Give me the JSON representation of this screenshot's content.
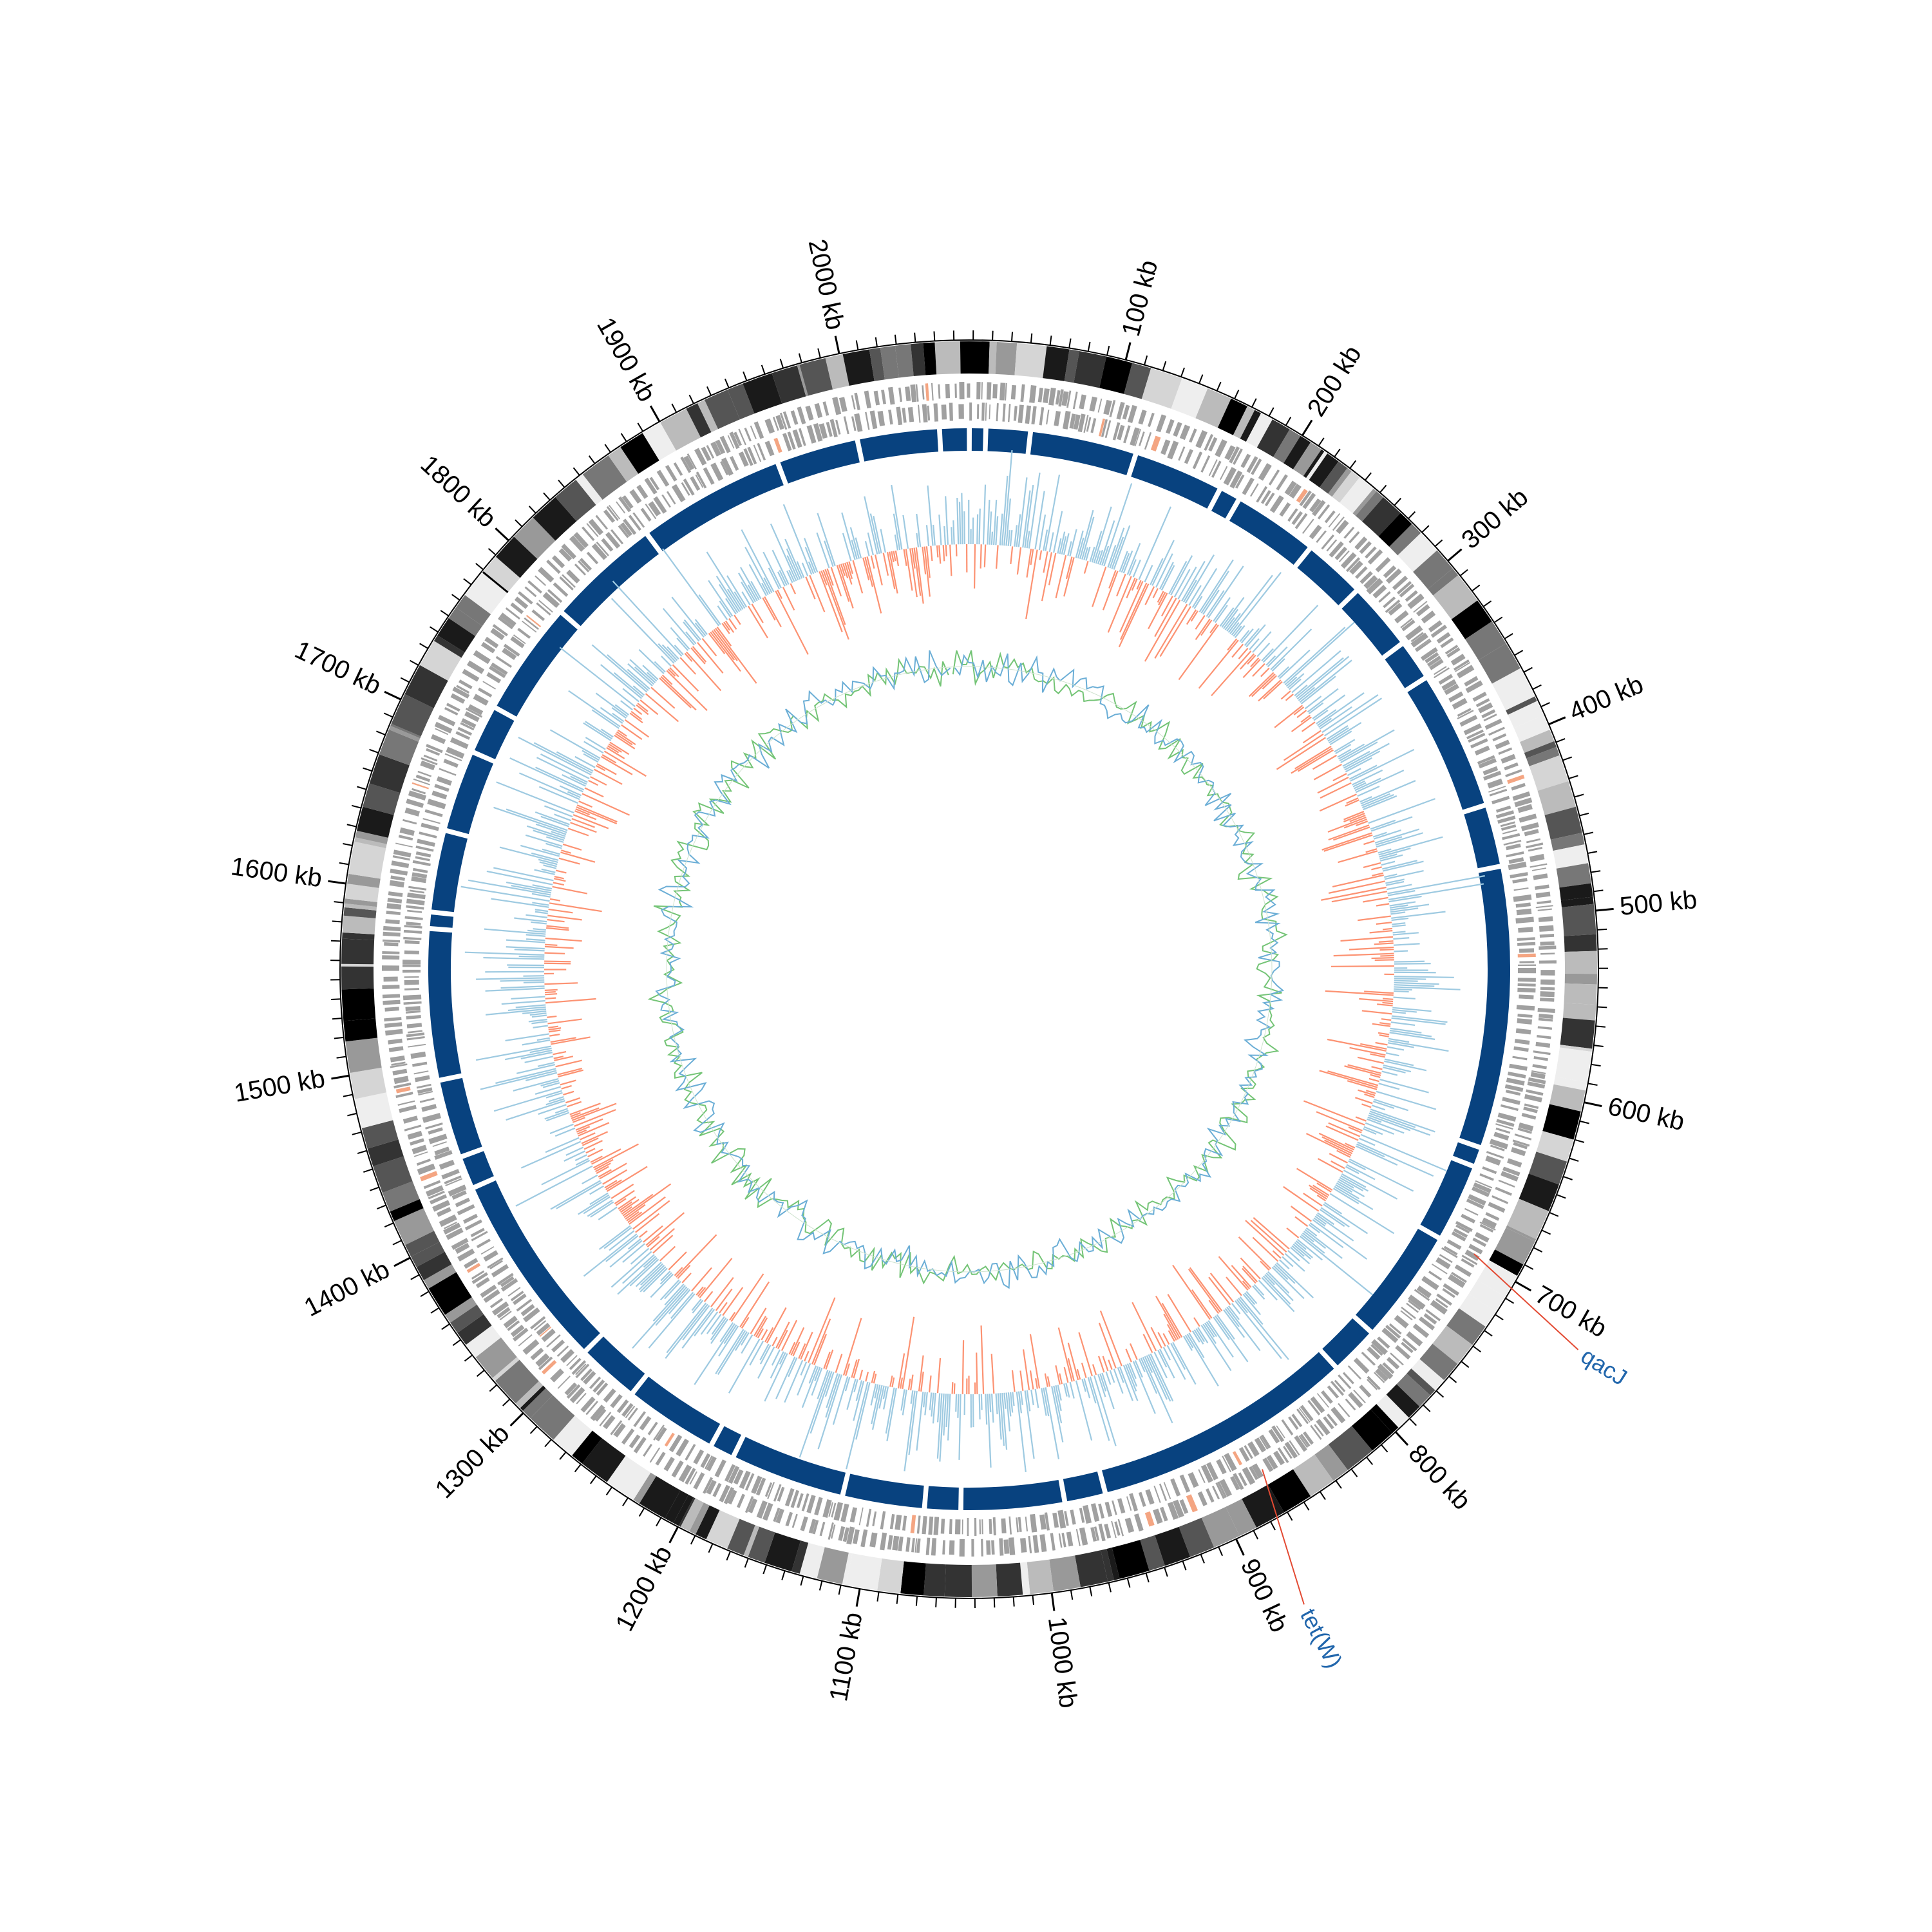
{
  "chart_data": {
    "type": "circular-genome-map",
    "genome_length_kb": 2050,
    "tick_labels": [
      {
        "kb": 100,
        "text": "100 kb"
      },
      {
        "kb": 200,
        "text": "200 kb"
      },
      {
        "kb": 300,
        "text": "300 kb"
      },
      {
        "kb": 400,
        "text": "400 kb"
      },
      {
        "kb": 500,
        "text": "500 kb"
      },
      {
        "kb": 600,
        "text": "600 kb"
      },
      {
        "kb": 700,
        "text": "700 kb"
      },
      {
        "kb": 800,
        "text": "800 kb"
      },
      {
        "kb": 900,
        "text": "900 kb"
      },
      {
        "kb": 1000,
        "text": "1000 kb"
      },
      {
        "kb": 1100,
        "text": "1100 kb"
      },
      {
        "kb": 1200,
        "text": "1200 kb"
      },
      {
        "kb": 1300,
        "text": "1300 kb"
      },
      {
        "kb": 1400,
        "text": "1400 kb"
      },
      {
        "kb": 1500,
        "text": "1500 kb"
      },
      {
        "kb": 1600,
        "text": "1600 kb"
      },
      {
        "kb": 1700,
        "text": "1700 kb"
      },
      {
        "kb": 1800,
        "text": "1800 kb"
      },
      {
        "kb": 1900,
        "text": "1900 kb"
      },
      {
        "kb": 2000,
        "text": "2000 kb"
      }
    ],
    "minor_tick_interval_kb": 10,
    "highlighted_genes": [
      {
        "name": "qacJ",
        "position_kb": 698
      },
      {
        "name": "tet(W)",
        "position_kb": 870
      }
    ],
    "tracks": [
      {
        "id": "contigs",
        "style": "grayscale-blocks"
      },
      {
        "id": "cds",
        "style": "gray-genes-two-strands"
      },
      {
        "id": "similarity",
        "style": "blue-blocks"
      },
      {
        "id": "gc-content",
        "style": "histogram",
        "colors": {
          "above": "#9ecae1",
          "below": "#fc9272"
        }
      },
      {
        "id": "gc-skew",
        "style": "line",
        "colors": {
          "positive": "#74c476",
          "negative": "#6baed6"
        }
      }
    ],
    "colors": {
      "similarity": "#08427f",
      "gene": "#a0a0a0",
      "label": "#2166ac",
      "pointer": "#e34a33"
    }
  }
}
